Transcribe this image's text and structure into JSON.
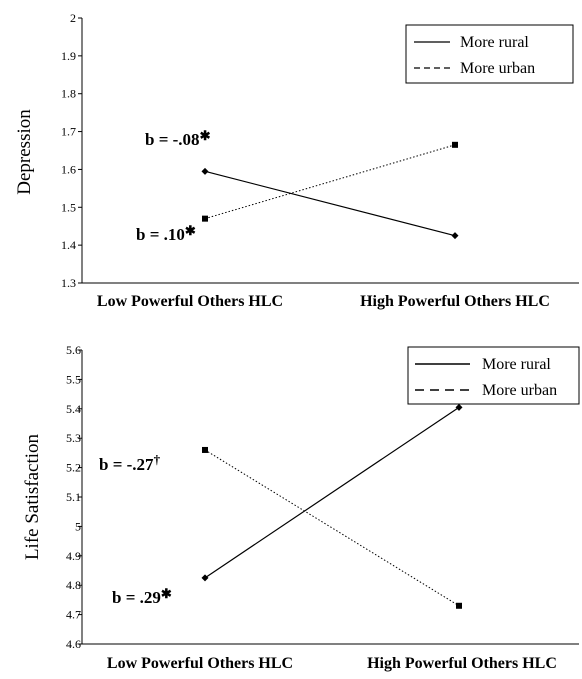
{
  "chart_data": [
    {
      "type": "line",
      "ylabel": "Depression",
      "ylim": [
        1.3,
        2.0
      ],
      "yticks": [
        "1.3",
        "1.4",
        "1.5",
        "1.6",
        "1.7",
        "1.8",
        "1.9",
        "2"
      ],
      "categories": [
        "Low Powerful Others HLC",
        "High Powerful Others HLC"
      ],
      "series": [
        {
          "name": "More rural",
          "values": [
            1.595,
            1.425
          ],
          "style": "solid",
          "color": "#000000"
        },
        {
          "name": "More urban",
          "values": [
            1.47,
            1.665
          ],
          "style": "dotted",
          "color": "#000000"
        }
      ],
      "legend": "top-right",
      "annotations": [
        "b = -.08",
        "b = .10"
      ],
      "grid": false
    },
    {
      "type": "line",
      "ylabel": "Life Satisfaction",
      "ylim": [
        4.6,
        5.6
      ],
      "yticks": [
        "4.6",
        "4.7",
        "4.8",
        "4.9",
        "5",
        "5.1",
        "5.2",
        "5.3",
        "5.4",
        "5.5",
        "5.6"
      ],
      "categories": [
        "Low Powerful Others HLC",
        "High Powerful Others HLC"
      ],
      "series": [
        {
          "name": "More rural",
          "values": [
            4.825,
            5.405
          ],
          "style": "solid",
          "color": "#000000"
        },
        {
          "name": "More urban",
          "values": [
            5.26,
            4.73
          ],
          "style": "dotted",
          "color": "#000000"
        }
      ],
      "legend": "top-right",
      "annotations": [
        "b = -.27",
        "b = .29"
      ],
      "grid": false
    }
  ]
}
